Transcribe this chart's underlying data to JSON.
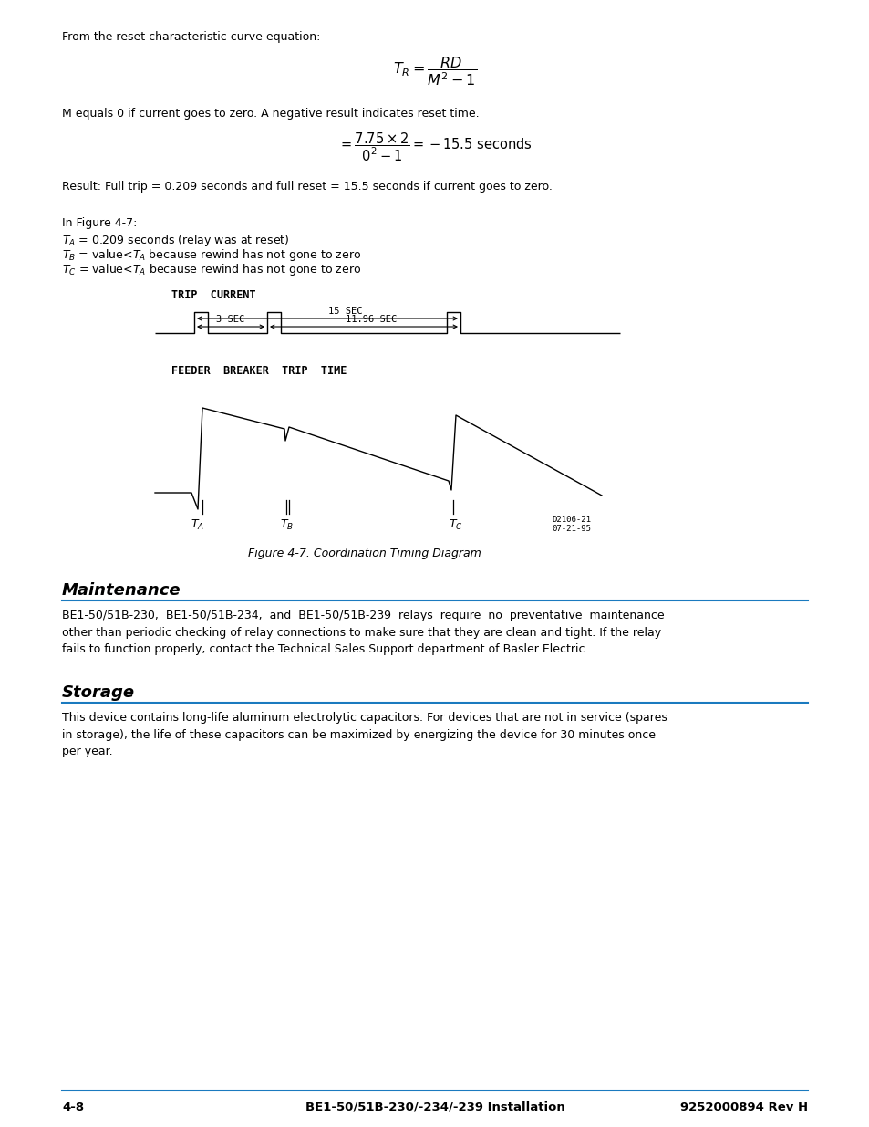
{
  "bg_color": "#ffffff",
  "text_color": "#000000",
  "accent_color": "#1a7abf",
  "page_width": 9.54,
  "page_height": 12.35,
  "lm": 68,
  "rm": 886,
  "top_text_1": "From the reset characteristic curve equation:",
  "text_M": "M equals 0 if current goes to zero. A negative result indicates reset time.",
  "text_result": "Result: Full trip = 0.209 seconds and full reset = 15.5 seconds if current goes to zero.",
  "diagram_label_trip_current": "TRIP  CURRENT",
  "diagram_label_feeder": "FEEDER  BREAKER  TRIP  TIME",
  "diagram_label_15sec": "15 SEC",
  "diagram_label_3sec": "3 SEC",
  "diagram_label_1196sec": "11.96 SEC",
  "figure_caption": "Figure 4-7. Coordination Timing Diagram",
  "section1_title": "Maintenance",
  "section2_title": "Storage",
  "footer_left": "4-8",
  "footer_center": "BE1-50/51B-230/-234/-239 Installation",
  "footer_right": "9252000894 Rev H",
  "diagram_stamp": "D2106-21\n07-21-95"
}
